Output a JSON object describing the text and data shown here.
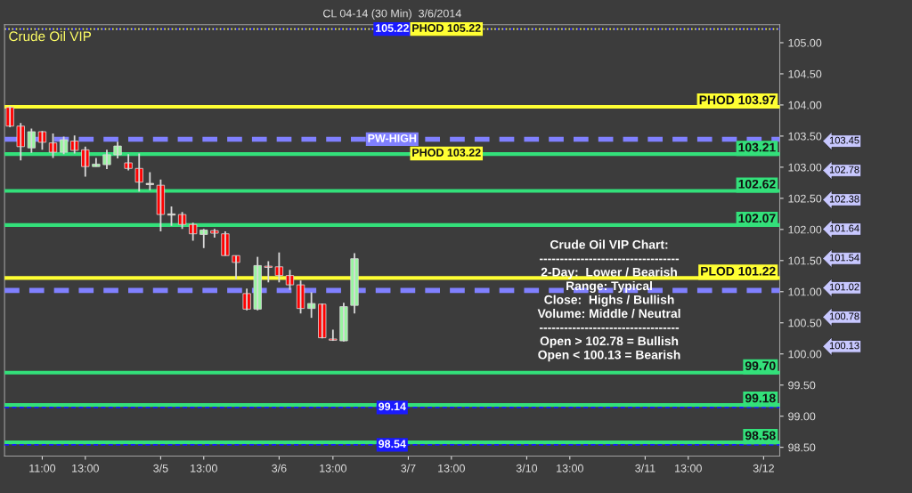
{
  "chart_data": {
    "type": "candlestick",
    "title": "CL 04-14 (30 Min)  3/6/2014",
    "categories": [
      null,
      null,
      null,
      "11:00",
      null,
      null,
      null,
      "13:00",
      null,
      null,
      null,
      null,
      null,
      null,
      "3/5",
      null,
      null,
      null,
      "13:00",
      null,
      null,
      null,
      null,
      null,
      null,
      "3/6",
      null,
      null,
      null,
      null,
      "13:00",
      null,
      null,
      null,
      null,
      null,
      null,
      "3/7",
      null,
      null,
      null,
      "13:00",
      null,
      null,
      null,
      null,
      null,
      null,
      "3/10",
      null,
      null,
      null,
      "13:00",
      null,
      null,
      null,
      null,
      null,
      null,
      "3/11",
      null,
      null,
      null,
      "13:00",
      null,
      null,
      null,
      null,
      null,
      null,
      "3/12",
      null
    ],
    "ohlc": [
      [
        103.96,
        103.98,
        103.64,
        103.66
      ],
      [
        103.66,
        103.71,
        103.11,
        103.33
      ],
      [
        103.31,
        103.62,
        103.23,
        103.57
      ],
      [
        103.57,
        103.58,
        103.28,
        103.4
      ],
      [
        103.39,
        103.54,
        103.15,
        103.24
      ],
      [
        103.24,
        103.49,
        103.21,
        103.44
      ],
      [
        103.42,
        103.51,
        103.22,
        103.27
      ],
      [
        103.28,
        103.33,
        102.85,
        103.01
      ],
      [
        103.01,
        103.15,
        103.01,
        103.05
      ],
      [
        103.04,
        103.28,
        102.97,
        103.2
      ],
      [
        103.2,
        103.41,
        103.14,
        103.34
      ],
      [
        103.07,
        103.21,
        102.95,
        102.98
      ],
      [
        102.98,
        103.22,
        102.61,
        102.76
      ],
      [
        102.74,
        102.92,
        102.63,
        102.72
      ],
      [
        102.71,
        102.8,
        101.97,
        102.24
      ],
      [
        102.25,
        102.37,
        102.06,
        102.23
      ],
      [
        102.24,
        102.28,
        102.01,
        102.08
      ],
      [
        102.08,
        102.11,
        101.82,
        101.93
      ],
      [
        101.92,
        102.01,
        101.7,
        101.99
      ],
      [
        101.98,
        102.01,
        101.87,
        101.94
      ],
      [
        101.93,
        101.97,
        101.58,
        101.58
      ],
      [
        101.58,
        101.58,
        101.2,
        101.47
      ],
      [
        100.97,
        101.05,
        100.7,
        100.72
      ],
      [
        100.72,
        101.56,
        100.7,
        101.42
      ],
      [
        101.41,
        101.49,
        101.15,
        101.39
      ],
      [
        101.4,
        101.63,
        101.15,
        101.26
      ],
      [
        101.26,
        101.35,
        101.03,
        101.11
      ],
      [
        101.11,
        101.18,
        100.65,
        100.73
      ],
      [
        100.73,
        100.99,
        100.58,
        100.81
      ],
      [
        100.8,
        100.81,
        100.25,
        100.26
      ],
      [
        100.24,
        100.39,
        100.21,
        100.22
      ],
      [
        100.21,
        100.82,
        100.2,
        100.76
      ],
      [
        100.78,
        101.62,
        100.65,
        101.53
      ],
      null,
      null,
      null,
      null,
      null,
      null,
      null,
      null,
      null,
      null,
      null,
      null,
      null,
      null,
      null,
      null,
      null,
      null,
      null,
      null,
      null,
      null,
      null,
      null,
      null,
      null,
      null,
      null,
      null,
      null,
      null,
      null,
      null,
      null,
      null,
      null,
      null,
      null,
      null
    ],
    "colors": [
      "#ff0000",
      "#ff0000",
      "#98f5a0",
      "#ff0000",
      "#ff0000",
      "#98f5a0",
      "#ff0000",
      "#ff0000",
      "#98f5a0",
      "#98f5a0",
      "#98f5a0",
      "#ff0000",
      "#ff0000",
      "#f0e0c0",
      "#ff0000",
      "#f0e0c0",
      "#ff0000",
      "#ff0000",
      "#98f5a0",
      "#ff0000",
      "#ff0000",
      "#ff0000",
      "#ff0000",
      "#98f5a0",
      "#ff0000",
      "#ff0000",
      "#ff0000",
      "#ff0000",
      "#98f5a0",
      "#ff0000",
      "#ff0000",
      "#98f5a0",
      "#98f5a0",
      null,
      null,
      null,
      null,
      null,
      null,
      null,
      null,
      null,
      null,
      null,
      null,
      null,
      null,
      null,
      null,
      null,
      null,
      null,
      null,
      null,
      null,
      null,
      null,
      null,
      null,
      null,
      null,
      null,
      null,
      null,
      null,
      null,
      null,
      null,
      null,
      null,
      null,
      null
    ],
    "ylim": [
      98.36,
      105.29
    ],
    "yticks": [
      {
        "value": 98.5,
        "label": "98.50"
      },
      {
        "value": 99,
        "label": "99.00"
      },
      {
        "value": 99.5,
        "label": "99.50"
      },
      {
        "value": 100,
        "label": "100.00"
      },
      {
        "value": 100.5,
        "label": "100.50"
      },
      {
        "value": 101,
        "label": "101.00"
      },
      {
        "value": 101.5,
        "label": "101.50"
      },
      {
        "value": 102,
        "label": "102.00"
      },
      {
        "value": 102.5,
        "label": "102.50"
      },
      {
        "value": 103,
        "label": "103.00"
      },
      {
        "value": 103.5,
        "label": "103.50"
      },
      {
        "value": 104,
        "label": "104.00"
      },
      {
        "value": 104.5,
        "label": "104.50"
      },
      {
        "value": 105,
        "label": "105.00"
      }
    ],
    "grid": false,
    "ref_lines": [
      {
        "axis": "y",
        "value": 105.22,
        "label": "105.22",
        "color": "#1a1aff",
        "line_style": "dashed"
      },
      {
        "axis": "y",
        "value": 105.22,
        "label": "PHOD 105.22",
        "color": "#ffff33",
        "line_style": "dotted"
      },
      {
        "axis": "y",
        "value": 103.97,
        "label": "PHOD 103.97",
        "color": "#ffff33",
        "line_style": "solid"
      },
      {
        "axis": "y",
        "value": 103.22,
        "label": "PHOD 103.22",
        "color": "#ffff33",
        "line_style": "dotted"
      },
      {
        "axis": "y",
        "value": 103.45,
        "label": "PW-HIGH",
        "color": "#8080ff",
        "line_style": "dashed"
      },
      {
        "axis": "y",
        "value": 101.02,
        "label": null,
        "color": "#8080ff",
        "line_style": "dashed"
      },
      {
        "axis": "y",
        "value": 101.22,
        "label": "PLOD 101.22",
        "color": "#ffff33",
        "line_style": "solid"
      },
      {
        "axis": "y",
        "value": 103.21,
        "label": "103.21",
        "color": "#33e07a",
        "line_style": "solid"
      },
      {
        "axis": "y",
        "value": 102.62,
        "label": "102.62",
        "color": "#33e07a",
        "line_style": "solid"
      },
      {
        "axis": "y",
        "value": 102.07,
        "label": "102.07",
        "color": "#33e07a",
        "line_style": "solid"
      },
      {
        "axis": "y",
        "value": 99.7,
        "label": "99.70",
        "color": "#33e07a",
        "line_style": "solid"
      },
      {
        "axis": "y",
        "value": 99.18,
        "label": "99.18",
        "color": "#33e07a",
        "line_style": "solid"
      },
      {
        "axis": "y",
        "value": 98.58,
        "label": "98.58",
        "color": "#33e07a",
        "line_style": "solid"
      },
      {
        "axis": "y",
        "value": 99.14,
        "label": "99.14",
        "color": "#1a1aff",
        "line_style": "dashed"
      },
      {
        "axis": "y",
        "value": 98.54,
        "label": "98.54",
        "color": "#1a1aff",
        "line_style": "dashed"
      }
    ],
    "annotations": [
      "Crude Oil VIP",
      "Crude Oil VIP Chart:\n----------------------------------\n2-Day:  Lower / Bearish\nRange: Typical\nClose:  Highs / Bullish\nVolume: Middle / Neutral\n----------------------------------\nOpen > 102.78 = Bullish\nOpen < 100.13 = Bearish",
      "103.45",
      "102.78",
      "102.38",
      "101.64",
      "101.54",
      "101.02",
      "100.78",
      "100.13"
    ]
  }
}
